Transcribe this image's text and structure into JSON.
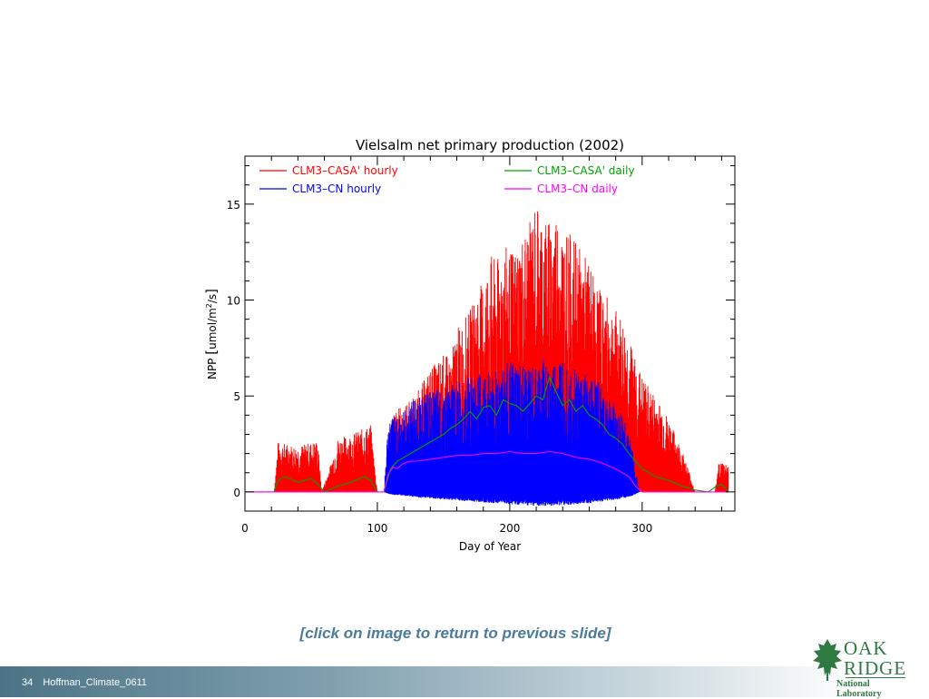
{
  "slide": {
    "caption": "[click on image to return to previous slide]",
    "page_number": "34",
    "footer_label": "Hoffman_Climate_0611"
  },
  "logo": {
    "word1": "OAK",
    "word2": "RIDGE",
    "sub": "National Laboratory",
    "icon": "oak-leaf-icon",
    "color": "#2f7a43"
  },
  "colors": {
    "caption": "#4a7c9c",
    "footer_bar": "#4b7486"
  },
  "chart_data": {
    "type": "line",
    "title": "Vielsalm net primary production (2002)",
    "xlabel": "Day of Year",
    "ylabel_main": "NPP ",
    "ylabel_bracket_open": "[",
    "ylabel_unit_a": "umol/m",
    "ylabel_sup": "2",
    "ylabel_unit_b": "/s",
    "ylabel_bracket_close": "]",
    "xlim": [
      0,
      370
    ],
    "ylim": [
      -1,
      17.5
    ],
    "xticks": [
      0,
      100,
      200,
      300
    ],
    "yticks": [
      0,
      5,
      10,
      15
    ],
    "grid": false,
    "legend_placement": "top",
    "series": [
      {
        "name": "CLM3–CASA' hourly",
        "color": "#ff0000",
        "kind": "hourly_band",
        "x": [
          22,
          25,
          40,
          55,
          58,
          65,
          70,
          80,
          95,
          100,
          105,
          110,
          118,
          125,
          130,
          135,
          140,
          145,
          150,
          155,
          160,
          165,
          170,
          175,
          180,
          185,
          190,
          195,
          200,
          205,
          210,
          215,
          220,
          225,
          230,
          235,
          240,
          245,
          250,
          255,
          260,
          265,
          270,
          275,
          280,
          285,
          290,
          295,
          300,
          305,
          310,
          315,
          320,
          325,
          330,
          335,
          340,
          355,
          358,
          365
        ],
        "ymax": [
          0,
          2.6,
          2.4,
          2.7,
          0,
          1.5,
          2.8,
          3.0,
          3.5,
          0,
          0,
          4.0,
          4.5,
          4.8,
          5.2,
          5.8,
          6.5,
          6.8,
          7.2,
          7.0,
          8.5,
          9.0,
          9.5,
          10.5,
          11.0,
          12.5,
          12.0,
          13.0,
          12.5,
          12.8,
          13.5,
          14.0,
          15.2,
          14.5,
          14.2,
          14.8,
          13.8,
          13.5,
          13.0,
          12.5,
          12.0,
          11.0,
          10.5,
          10.0,
          9.5,
          9.0,
          8.0,
          7.0,
          6.0,
          5.5,
          5.0,
          4.5,
          3.8,
          3.0,
          2.2,
          1.2,
          0,
          0,
          1.6,
          1.5
        ],
        "ymin": [
          0,
          0,
          0,
          0,
          0,
          0,
          0,
          0,
          0,
          0,
          0,
          0,
          0,
          0,
          0,
          0,
          0,
          0,
          0,
          0,
          0,
          0,
          0,
          0,
          0,
          0,
          0,
          0,
          0,
          0,
          0,
          0,
          0,
          0,
          0,
          0,
          0,
          0,
          0,
          0,
          0,
          0,
          0,
          0,
          0,
          0,
          0,
          0,
          0,
          0,
          0,
          0,
          0,
          0,
          0,
          0,
          0,
          0,
          0,
          0
        ]
      },
      {
        "name": "CLM3–CN hourly",
        "color": "#0000ff",
        "kind": "hourly_band",
        "x": [
          105,
          108,
          112,
          120,
          125,
          130,
          140,
          150,
          160,
          170,
          180,
          190,
          200,
          210,
          220,
          225,
          230,
          240,
          250,
          260,
          270,
          280,
          288,
          293,
          298
        ],
        "ymax": [
          0,
          3.5,
          4.0,
          4.2,
          4.8,
          5.0,
          5.2,
          5.5,
          5.8,
          6.0,
          6.2,
          6.5,
          6.8,
          6.6,
          6.4,
          7.0,
          6.5,
          7.2,
          6.5,
          6.2,
          5.5,
          4.5,
          3.8,
          2.0,
          0
        ],
        "ymin": [
          0,
          -0.1,
          -0.15,
          -0.2,
          -0.25,
          -0.3,
          -0.35,
          -0.4,
          -0.45,
          -0.5,
          -0.55,
          -0.6,
          -0.65,
          -0.7,
          -0.72,
          -0.75,
          -0.72,
          -0.7,
          -0.65,
          -0.6,
          -0.5,
          -0.4,
          -0.3,
          -0.2,
          0
        ]
      },
      {
        "name": "CLM3–CASA' daily",
        "color": "#00a000",
        "kind": "line",
        "x": [
          0,
          22,
          25,
          30,
          40,
          50,
          55,
          60,
          70,
          80,
          90,
          95,
          100,
          105,
          110,
          115,
          120,
          125,
          130,
          135,
          140,
          145,
          150,
          155,
          160,
          165,
          170,
          175,
          180,
          185,
          190,
          195,
          200,
          205,
          210,
          215,
          220,
          225,
          230,
          235,
          240,
          245,
          250,
          255,
          260,
          265,
          270,
          275,
          280,
          285,
          290,
          295,
          300,
          305,
          310,
          320,
          330,
          340,
          350,
          356,
          360,
          365
        ],
        "y": [
          0,
          0,
          0.6,
          0.8,
          0.5,
          0.7,
          0.4,
          0,
          0.3,
          0.5,
          0.8,
          0.6,
          0,
          0,
          1.2,
          1.6,
          1.8,
          2.0,
          2.2,
          2.4,
          2.6,
          2.8,
          3.0,
          3.3,
          3.5,
          3.8,
          4.2,
          3.8,
          4.4,
          4.5,
          4.0,
          4.8,
          4.6,
          4.5,
          4.2,
          4.6,
          5.0,
          4.8,
          6.0,
          5.2,
          4.5,
          4.8,
          4.2,
          4.5,
          4.0,
          3.8,
          3.5,
          3.0,
          2.8,
          2.5,
          2.0,
          1.6,
          1.2,
          1.0,
          0.8,
          0.6,
          0.3,
          0.1,
          0,
          0.3,
          0.4,
          0
        ]
      },
      {
        "name": "CLM3–CN daily",
        "color": "#ff00ff",
        "kind": "line",
        "x": [
          0,
          100,
          105,
          108,
          112,
          115,
          118,
          120,
          125,
          130,
          140,
          150,
          160,
          170,
          180,
          190,
          200,
          210,
          220,
          230,
          240,
          250,
          260,
          270,
          280,
          290,
          295,
          300,
          365
        ],
        "y": [
          0,
          0,
          0,
          0.9,
          1.3,
          1.2,
          1.4,
          1.5,
          1.6,
          1.6,
          1.7,
          1.8,
          1.9,
          1.9,
          2.0,
          2.0,
          2.1,
          2.0,
          2.0,
          2.1,
          2.0,
          1.8,
          1.7,
          1.5,
          1.2,
          0.8,
          0.3,
          0,
          0
        ]
      }
    ]
  }
}
